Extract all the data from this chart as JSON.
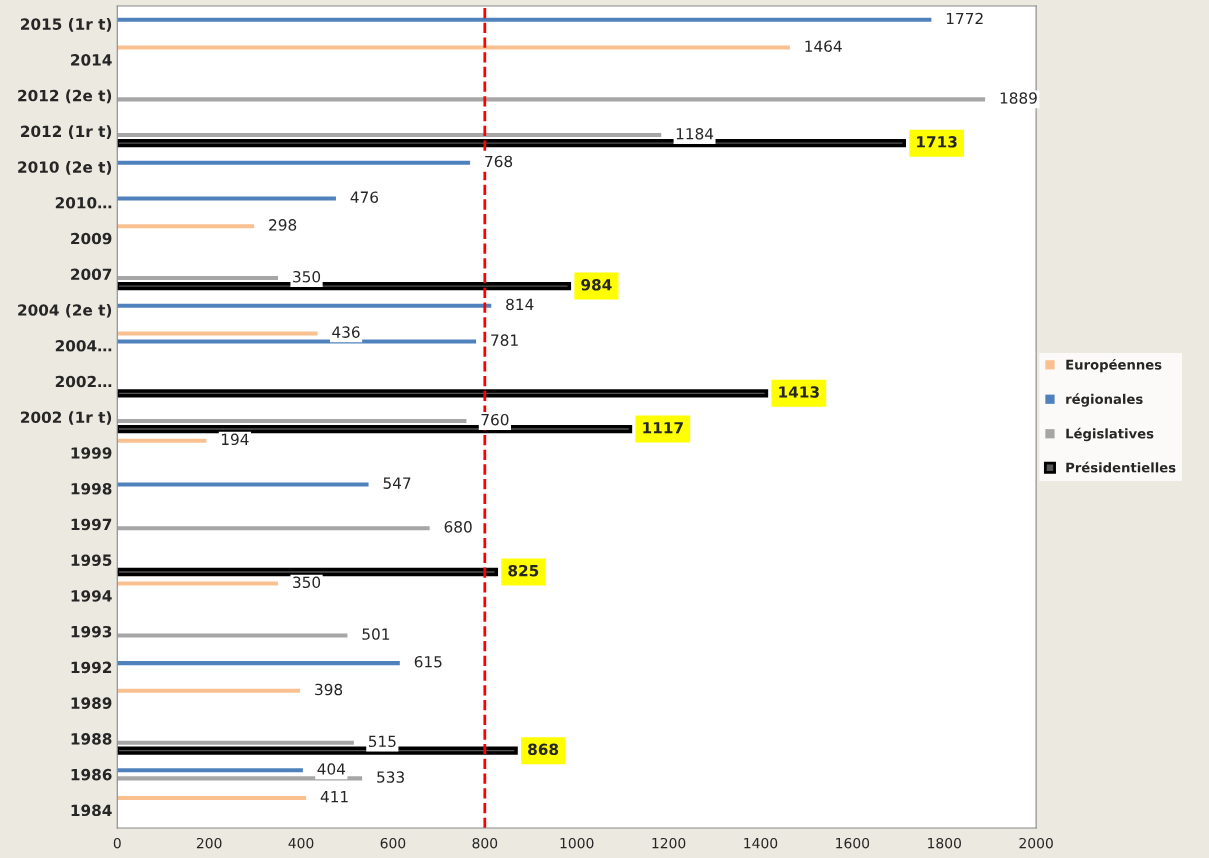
{
  "chart_data": {
    "type": "bar",
    "orientation": "horizontal",
    "categories": [
      "2015 (1r t)",
      "2014",
      "2012 (2e t)",
      "2012 (1r t)",
      "2010 (2e t)",
      "2010…",
      "2009",
      "2007",
      "2004 (2e t)",
      "2004…",
      "2002…",
      "2002 (1r t)",
      "1999",
      "1998",
      "1997",
      "1995",
      "1994",
      "1993",
      "1992",
      "1989",
      "1988",
      "1986",
      "1984"
    ],
    "series": [
      {
        "name": "Européennes",
        "color": "#fac090",
        "values": [
          null,
          1464,
          null,
          null,
          null,
          null,
          298,
          null,
          null,
          436,
          null,
          null,
          194,
          null,
          null,
          null,
          350,
          null,
          null,
          398,
          null,
          null,
          411
        ]
      },
      {
        "name": "régionales",
        "color": "#4f81bd",
        "values": [
          1772,
          null,
          null,
          null,
          768,
          476,
          null,
          null,
          814,
          781,
          null,
          null,
          null,
          547,
          null,
          null,
          null,
          null,
          615,
          null,
          null,
          404,
          null
        ]
      },
      {
        "name": "Législatives",
        "color": "#a6a6a6",
        "values": [
          null,
          null,
          1889,
          1184,
          null,
          null,
          null,
          350,
          null,
          null,
          null,
          760,
          null,
          null,
          680,
          null,
          null,
          501,
          null,
          null,
          515,
          533,
          null
        ]
      },
      {
        "name": "Présidentielles",
        "color": "#000000",
        "values": [
          null,
          null,
          null,
          1713,
          null,
          null,
          null,
          984,
          null,
          null,
          1413,
          1117,
          null,
          null,
          null,
          825,
          null,
          null,
          null,
          null,
          868,
          null,
          null
        ]
      }
    ],
    "xlim": [
      0,
      2000
    ],
    "xticks": [
      0,
      200,
      400,
      600,
      800,
      1000,
      1200,
      1400,
      1600,
      1800,
      2000
    ],
    "ref_lines": [
      {
        "axis": "x",
        "value": 800,
        "color": "#ff0000",
        "line_style": "dashed"
      }
    ],
    "data_labels": true,
    "legend": "right",
    "grid": false
  }
}
